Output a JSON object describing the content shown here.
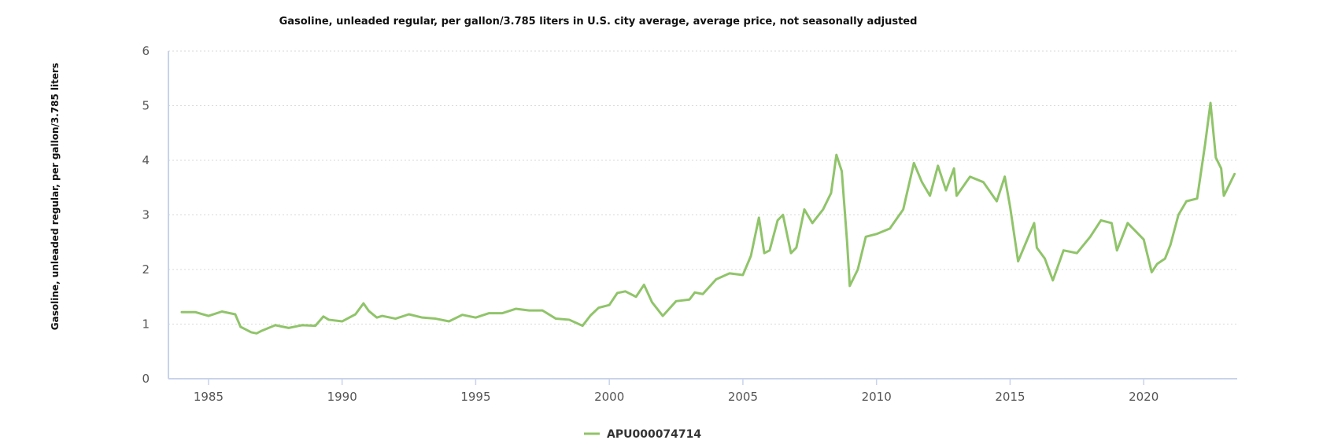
{
  "chart_data": {
    "type": "line",
    "title": "Gasoline, unleaded regular, per gallon/3.785 liters in U.S. city average, average price, not seasonally adjusted",
    "xlabel": "",
    "ylabel": "Gasoline, unleaded regular, per gallon/3.785 liters",
    "xlim": [
      1983.5,
      2023.5
    ],
    "ylim": [
      0,
      6
    ],
    "x_ticks": [
      "1985",
      "1990",
      "1995",
      "2000",
      "2005",
      "2010",
      "2015",
      "2020"
    ],
    "y_ticks": [
      "0",
      "1",
      "2",
      "3",
      "4",
      "5",
      "6"
    ],
    "grid": true,
    "legend": "bottom-center",
    "line_color": "#90c46a",
    "series": [
      {
        "name": "APU000074714",
        "x": [
          1984.0,
          1984.5,
          1985.0,
          1985.5,
          1986.0,
          1986.2,
          1986.4,
          1986.6,
          1986.8,
          1987.0,
          1987.5,
          1988.0,
          1988.5,
          1989.0,
          1989.3,
          1989.5,
          1990.0,
          1990.5,
          1990.8,
          1991.0,
          1991.3,
          1991.5,
          1992.0,
          1992.5,
          1993.0,
          1993.5,
          1994.0,
          1994.5,
          1995.0,
          1995.5,
          1996.0,
          1996.5,
          1997.0,
          1997.5,
          1998.0,
          1998.5,
          1999.0,
          1999.3,
          1999.6,
          2000.0,
          2000.3,
          2000.6,
          2001.0,
          2001.3,
          2001.6,
          2002.0,
          2002.5,
          2003.0,
          2003.2,
          2003.5,
          2004.0,
          2004.5,
          2005.0,
          2005.3,
          2005.6,
          2005.8,
          2006.0,
          2006.3,
          2006.5,
          2006.8,
          2007.0,
          2007.3,
          2007.6,
          2008.0,
          2008.3,
          2008.5,
          2008.7,
          2008.9,
          2009.0,
          2009.3,
          2009.6,
          2010.0,
          2010.5,
          2011.0,
          2011.4,
          2011.7,
          2012.0,
          2012.3,
          2012.6,
          2012.9,
          2013.0,
          2013.5,
          2014.0,
          2014.5,
          2014.8,
          2015.0,
          2015.3,
          2015.6,
          2015.9,
          2016.0,
          2016.3,
          2016.6,
          2017.0,
          2017.5,
          2018.0,
          2018.4,
          2018.8,
          2019.0,
          2019.4,
          2019.7,
          2020.0,
          2020.3,
          2020.5,
          2020.8,
          2021.0,
          2021.3,
          2021.6,
          2022.0,
          2022.3,
          2022.5,
          2022.7,
          2022.9,
          2023.0,
          2023.2,
          2023.4
        ],
        "values": [
          1.22,
          1.22,
          1.15,
          1.23,
          1.18,
          0.95,
          0.9,
          0.85,
          0.83,
          0.88,
          0.98,
          0.93,
          0.98,
          0.97,
          1.14,
          1.08,
          1.05,
          1.18,
          1.38,
          1.24,
          1.12,
          1.15,
          1.1,
          1.18,
          1.12,
          1.1,
          1.05,
          1.17,
          1.12,
          1.2,
          1.2,
          1.28,
          1.25,
          1.25,
          1.1,
          1.08,
          0.97,
          1.16,
          1.3,
          1.35,
          1.57,
          1.6,
          1.5,
          1.72,
          1.4,
          1.15,
          1.42,
          1.45,
          1.58,
          1.55,
          1.82,
          1.93,
          1.9,
          2.25,
          2.95,
          2.3,
          2.35,
          2.9,
          3.0,
          2.3,
          2.4,
          3.1,
          2.85,
          3.1,
          3.4,
          4.1,
          3.8,
          2.5,
          1.7,
          2.0,
          2.6,
          2.65,
          2.75,
          3.1,
          3.95,
          3.6,
          3.35,
          3.9,
          3.45,
          3.85,
          3.35,
          3.7,
          3.6,
          3.25,
          3.7,
          3.15,
          2.15,
          2.5,
          2.85,
          2.4,
          2.2,
          1.8,
          2.35,
          2.3,
          2.6,
          2.9,
          2.85,
          2.35,
          2.85,
          2.7,
          2.55,
          1.95,
          2.1,
          2.2,
          2.45,
          3.0,
          3.25,
          3.3,
          4.3,
          5.05,
          4.05,
          3.85,
          3.35,
          3.55,
          3.75
        ]
      }
    ]
  }
}
